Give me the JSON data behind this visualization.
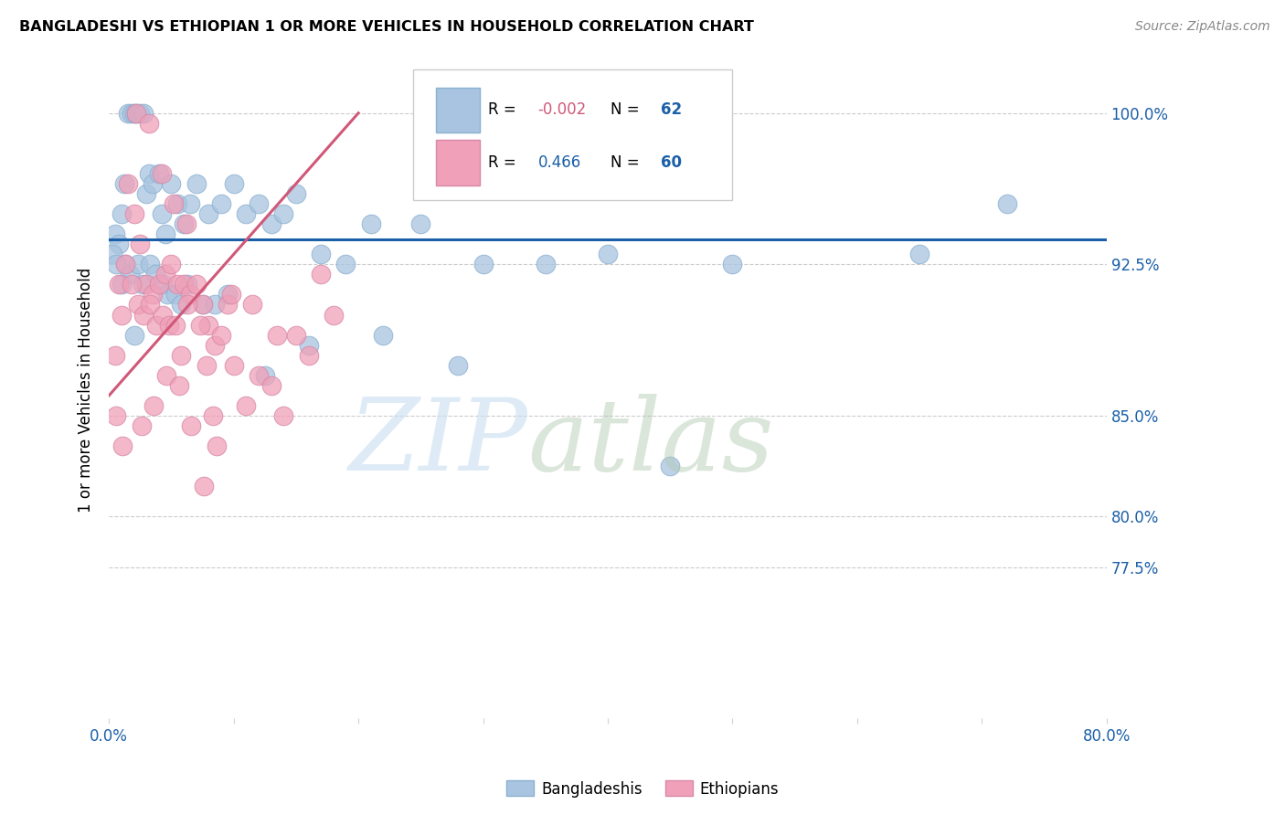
{
  "title": "BANGLADESHI VS ETHIOPIAN 1 OR MORE VEHICLES IN HOUSEHOLD CORRELATION CHART",
  "source": "Source: ZipAtlas.com",
  "ylabel": "1 or more Vehicles in Household",
  "xlim": [
    0.0,
    80.0
  ],
  "ylim": [
    70.0,
    102.5
  ],
  "ytick_values": [
    77.5,
    80.0,
    85.0,
    92.5,
    100.0
  ],
  "ytick_labels": [
    "77.5%",
    "80.0%",
    "85.0%",
    "92.5%",
    "100.0%"
  ],
  "xtick_values": [
    0,
    10,
    20,
    30,
    40,
    50,
    60,
    70,
    80
  ],
  "xtick_labels": [
    "0.0%",
    "",
    "",
    "",
    "",
    "",
    "",
    "",
    "80.0%"
  ],
  "legend_R_blue": "-0.002",
  "legend_N_blue": "62",
  "legend_R_pink": "0.466",
  "legend_N_pink": "60",
  "blue_color": "#a8c4e0",
  "pink_color": "#f0a0b8",
  "blue_line_color": "#1a5fa8",
  "pink_line_color": "#d05878",
  "axis_color": "#1a5fa8",
  "grid_color": "#cccccc",
  "blue_scatter_x": [
    1.0,
    1.2,
    1.5,
    1.8,
    2.0,
    2.2,
    2.5,
    2.8,
    3.0,
    3.2,
    3.5,
    4.0,
    4.2,
    4.5,
    5.0,
    5.5,
    6.0,
    6.5,
    7.0,
    8.0,
    9.0,
    10.0,
    11.0,
    12.0,
    13.0,
    14.0,
    15.0,
    17.0,
    19.0,
    21.0,
    25.0,
    30.0,
    35.0,
    40.0,
    50.0,
    65.0,
    72.0,
    0.5,
    0.8,
    1.3,
    1.7,
    2.3,
    2.7,
    3.3,
    3.7,
    4.3,
    4.7,
    5.3,
    5.8,
    6.3,
    7.5,
    8.5,
    9.5,
    12.5,
    16.0,
    22.0,
    28.0,
    0.3,
    0.6,
    1.0,
    2.0,
    45.0
  ],
  "blue_scatter_y": [
    95.0,
    96.5,
    100.0,
    100.0,
    100.0,
    100.0,
    100.0,
    100.0,
    96.0,
    97.0,
    96.5,
    97.0,
    95.0,
    94.0,
    96.5,
    95.5,
    94.5,
    95.5,
    96.5,
    95.0,
    95.5,
    96.5,
    95.0,
    95.5,
    94.5,
    95.0,
    96.0,
    93.0,
    92.5,
    94.5,
    94.5,
    92.5,
    92.5,
    93.0,
    92.5,
    93.0,
    95.5,
    94.0,
    93.5,
    92.5,
    92.0,
    92.5,
    91.5,
    92.5,
    92.0,
    91.5,
    91.0,
    91.0,
    90.5,
    91.5,
    90.5,
    90.5,
    91.0,
    87.0,
    88.5,
    89.0,
    87.5,
    93.0,
    92.5,
    91.5,
    89.0,
    82.5
  ],
  "pink_scatter_x": [
    0.5,
    1.0,
    1.5,
    2.0,
    2.5,
    3.0,
    3.5,
    4.0,
    4.5,
    5.0,
    5.5,
    6.0,
    6.5,
    7.0,
    7.5,
    8.0,
    8.5,
    9.0,
    9.5,
    10.0,
    11.0,
    12.0,
    13.0,
    14.0,
    15.0,
    16.0,
    17.0,
    18.0,
    0.8,
    1.3,
    1.8,
    2.3,
    2.8,
    3.3,
    3.8,
    4.3,
    4.8,
    5.3,
    5.8,
    6.3,
    7.3,
    7.8,
    8.3,
    9.8,
    11.5,
    13.5,
    0.6,
    1.1,
    2.6,
    3.6,
    4.6,
    5.6,
    6.6,
    7.6,
    8.6,
    2.2,
    3.2,
    4.2,
    5.2,
    6.2
  ],
  "pink_scatter_y": [
    88.0,
    90.0,
    96.5,
    95.0,
    93.5,
    91.5,
    91.0,
    91.5,
    92.0,
    92.5,
    91.5,
    91.5,
    91.0,
    91.5,
    90.5,
    89.5,
    88.5,
    89.0,
    90.5,
    87.5,
    85.5,
    87.0,
    86.5,
    85.0,
    89.0,
    88.0,
    92.0,
    90.0,
    91.5,
    92.5,
    91.5,
    90.5,
    90.0,
    90.5,
    89.5,
    90.0,
    89.5,
    89.5,
    88.0,
    90.5,
    89.5,
    87.5,
    85.0,
    91.0,
    90.5,
    89.0,
    85.0,
    83.5,
    84.5,
    85.5,
    87.0,
    86.5,
    84.5,
    81.5,
    83.5,
    100.0,
    99.5,
    97.0,
    95.5,
    94.5
  ]
}
